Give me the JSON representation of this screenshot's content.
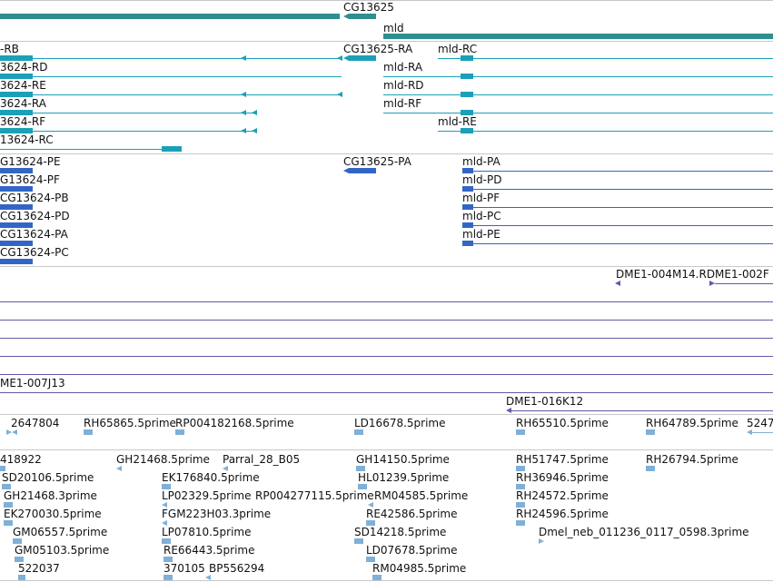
{
  "colors": {
    "gene": "#2f8e8e",
    "transcript": "#1ba0b8",
    "protein": "#3366c4",
    "bac": "#6a55a8",
    "est": "#7fb0d8",
    "divider": "#c8c8c8"
  },
  "tracks": {
    "gene": {
      "cg13625": "CG13625",
      "mld": "mld"
    },
    "transcript": {
      "left": [
        "-RB",
        "3624-RD",
        "3624-RE",
        "3624-RA",
        "3624-RF",
        "13624-RC"
      ],
      "cg13625_ra": "CG13625-RA",
      "mld_left": [
        "mld-RA",
        "mld-RD",
        "mld-RF"
      ],
      "mld_right": [
        "mld-RC",
        "mld-RE"
      ]
    },
    "protein": {
      "left": [
        "G13624-PE",
        "G13624-PF",
        "CG13624-PB",
        "CG13624-PD",
        "CG13624-PA",
        "CG13624-PC"
      ],
      "cg13625_pa": "CG13625-PA",
      "mld": [
        "mld-PA",
        "mld-PD",
        "mld-PF",
        "mld-PC",
        "mld-PE"
      ]
    },
    "bac": {
      "top": "DME1-004M14.RDME1-002F",
      "left": "ME1-007J13",
      "bottom": "DME1-016K12"
    },
    "est": {
      "row1": [
        "2647804",
        "RH65865.5prime",
        "RP004182168.5prime",
        "LD16678.5prime",
        "RH65510.5prime",
        "RH64789.5prime",
        "5247"
      ],
      "row2": [
        "418922",
        "GH21468.5prime",
        "Parral_28_B05",
        "GH14150.5prime",
        "RH51747.5prime",
        "RH26794.5prime"
      ],
      "row3": [
        "SD20106.5prime",
        "EK176840.5prime",
        "HL01239.5prime",
        "RH36946.5prime"
      ],
      "row4": [
        "GH21468.3prime",
        "LP02329.5prime",
        "RP004277115.5prime",
        "RM04585.5prime",
        "RH24572.5prime"
      ],
      "row5": [
        "EK270030.5prime",
        "FGM223H03.3prime",
        "RE42586.5prime",
        "RH24596.5prime"
      ],
      "row6": [
        "GM06557.5prime",
        "LP07810.5prime",
        "SD14218.5prime",
        "Dmel_neb_011236_0117_0598.3prime"
      ],
      "row7": [
        "GM05103.5prime",
        "RE66443.5prime",
        "LD07678.5prime"
      ],
      "row8": [
        "522037",
        "370105",
        "BP556294",
        "RM04985.5prime"
      ]
    }
  }
}
